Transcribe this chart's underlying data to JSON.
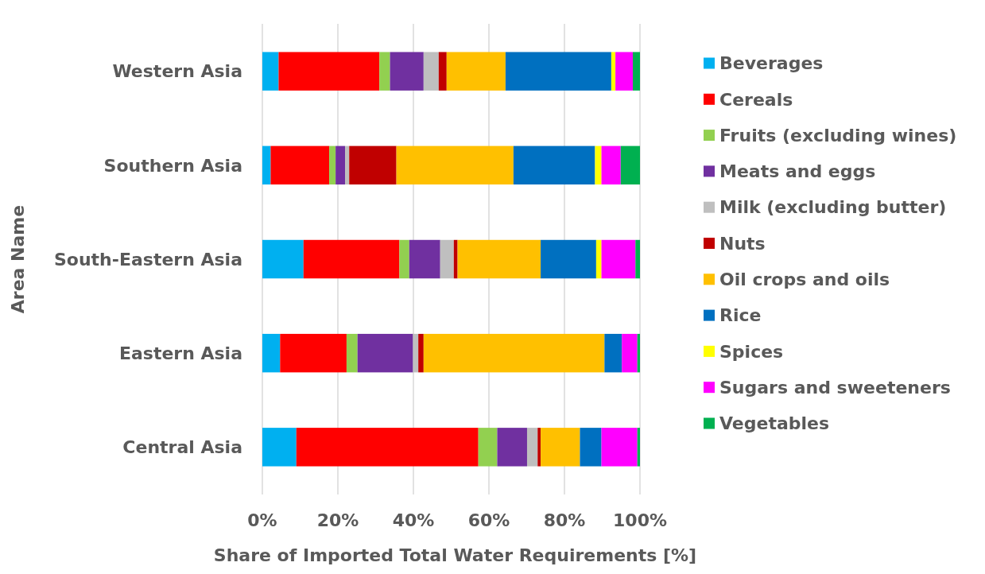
{
  "chart_data": {
    "type": "bar",
    "orientation": "horizontal",
    "stacked": true,
    "xlabel": "Share of Imported Total Water Requirements [%]",
    "ylabel": "Area Name",
    "categories": [
      "Western Asia",
      "Southern Asia",
      "South-Eastern Asia",
      "Eastern Asia",
      "Central Asia"
    ],
    "series": [
      {
        "name": "Beverages",
        "color": "#00b0f0",
        "values": [
          4.3,
          2.2,
          10.9,
          4.7,
          9.0
        ]
      },
      {
        "name": "Cereals",
        "color": "#ff0000",
        "values": [
          26.7,
          15.5,
          25.4,
          17.6,
          48.2
        ]
      },
      {
        "name": "Fruits (excluding wines)",
        "color": "#92d050",
        "values": [
          2.8,
          1.7,
          2.6,
          2.9,
          5.0
        ]
      },
      {
        "name": "Meats and eggs",
        "color": "#7030a0",
        "values": [
          8.9,
          2.5,
          8.2,
          14.7,
          7.9
        ]
      },
      {
        "name": "Milk (excluding butter)",
        "color": "#bfbfbf",
        "values": [
          4.0,
          1.1,
          3.6,
          1.4,
          2.8
        ]
      },
      {
        "name": "Nuts",
        "color": "#c00000",
        "values": [
          2.1,
          12.5,
          1.0,
          1.4,
          0.8
        ]
      },
      {
        "name": "Oil crops and oils",
        "color": "#ffc000",
        "values": [
          15.6,
          31.0,
          22.0,
          47.9,
          10.4
        ]
      },
      {
        "name": "Rice",
        "color": "#0070c0",
        "values": [
          28.0,
          21.6,
          14.7,
          4.6,
          5.7
        ]
      },
      {
        "name": "Spices",
        "color": "#ffff00",
        "values": [
          1.1,
          1.7,
          1.4,
          0,
          0
        ]
      },
      {
        "name": "Sugars and sweeteners",
        "color": "#ff00ff",
        "values": [
          4.6,
          5.1,
          9.0,
          4.1,
          9.5
        ]
      },
      {
        "name": "Vegetables",
        "color": "#00b050",
        "values": [
          1.9,
          5.1,
          1.2,
          0.7,
          0.7
        ]
      }
    ],
    "xlim": [
      0,
      100
    ],
    "xticks": [
      {
        "value": 0,
        "label": "0%"
      },
      {
        "value": 20,
        "label": "20%"
      },
      {
        "value": 40,
        "label": "40%"
      },
      {
        "value": 60,
        "label": "60%"
      },
      {
        "value": 80,
        "label": "80%"
      },
      {
        "value": 100,
        "label": "100%"
      }
    ],
    "grid": "x",
    "legend": "right"
  }
}
